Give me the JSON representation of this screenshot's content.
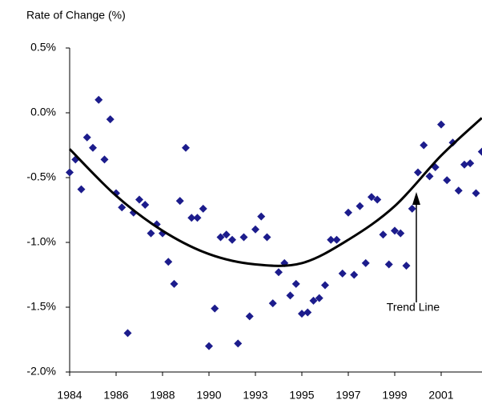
{
  "chart_data": {
    "type": "scatter",
    "title": "Rate of Change (%)",
    "categories": [
      "1984",
      null,
      null,
      null,
      null,
      null,
      null,
      null,
      "1986",
      null,
      null,
      null,
      null,
      null,
      null,
      null,
      "1988",
      null,
      null,
      null,
      null,
      null,
      null,
      null,
      "1990",
      null,
      null,
      null,
      null,
      null,
      null,
      null,
      "1993",
      null,
      null,
      null,
      null,
      null,
      null,
      null,
      "1995",
      null,
      null,
      null,
      null,
      null,
      null,
      null,
      "1997",
      null,
      null,
      null,
      null,
      null,
      null,
      null,
      "1999",
      null,
      null,
      null,
      null,
      null,
      null,
      null,
      "2001",
      null,
      null,
      null,
      null,
      null,
      null,
      null
    ],
    "series": [
      {
        "color": "#1c1c8c",
        "values": [
          -0.46,
          -0.36,
          -0.59,
          -0.19,
          -0.27,
          0.1,
          -0.36,
          -0.05,
          -0.62,
          -0.73,
          -1.7,
          -0.77,
          -0.67,
          -0.71,
          -0.93,
          -0.86,
          -0.93,
          -1.15,
          -1.32,
          -0.68,
          -0.27,
          -0.81,
          -0.81,
          -0.74,
          -1.8,
          -1.51,
          -0.96,
          -0.94,
          -0.98,
          -1.78,
          -0.96,
          -1.57,
          -0.9,
          -0.8,
          -0.96,
          -1.47,
          -1.23,
          -1.16,
          -1.41,
          -1.32,
          -1.55,
          -1.54,
          -1.45,
          -1.43,
          -1.33,
          -0.98,
          -0.98,
          -1.24,
          -0.77,
          -1.25,
          -0.72,
          -1.16,
          -0.65,
          -0.67,
          -0.94,
          -1.17,
          -0.91,
          -0.93,
          -1.18,
          -0.74,
          -0.46,
          -0.25,
          -0.49,
          -0.42,
          -0.09,
          -0.52,
          -0.23,
          -0.6,
          -0.4,
          -0.39,
          -0.62,
          -0.3
        ]
      }
    ],
    "trend": {
      "label": "Trend Line",
      "color": "#000000",
      "x": [
        0,
        8,
        16,
        24,
        32,
        40,
        48,
        56,
        64,
        71
      ],
      "values": [
        -0.28,
        -0.64,
        -0.91,
        -1.09,
        -1.17,
        -1.16,
        -0.98,
        -0.72,
        -0.33,
        -0.04
      ]
    },
    "ylim": [
      -2.0,
      0.5
    ],
    "yticks": [
      {
        "value": 0.5,
        "label": "0.5%"
      },
      {
        "value": 0.0,
        "label": "0.0%"
      },
      {
        "value": -0.5,
        "label": "-0.5%"
      },
      {
        "value": -1.0,
        "label": "-1.0%"
      },
      {
        "value": -1.5,
        "label": "-1.5%"
      },
      {
        "value": -2.0,
        "label": "-2.0%"
      }
    ]
  }
}
